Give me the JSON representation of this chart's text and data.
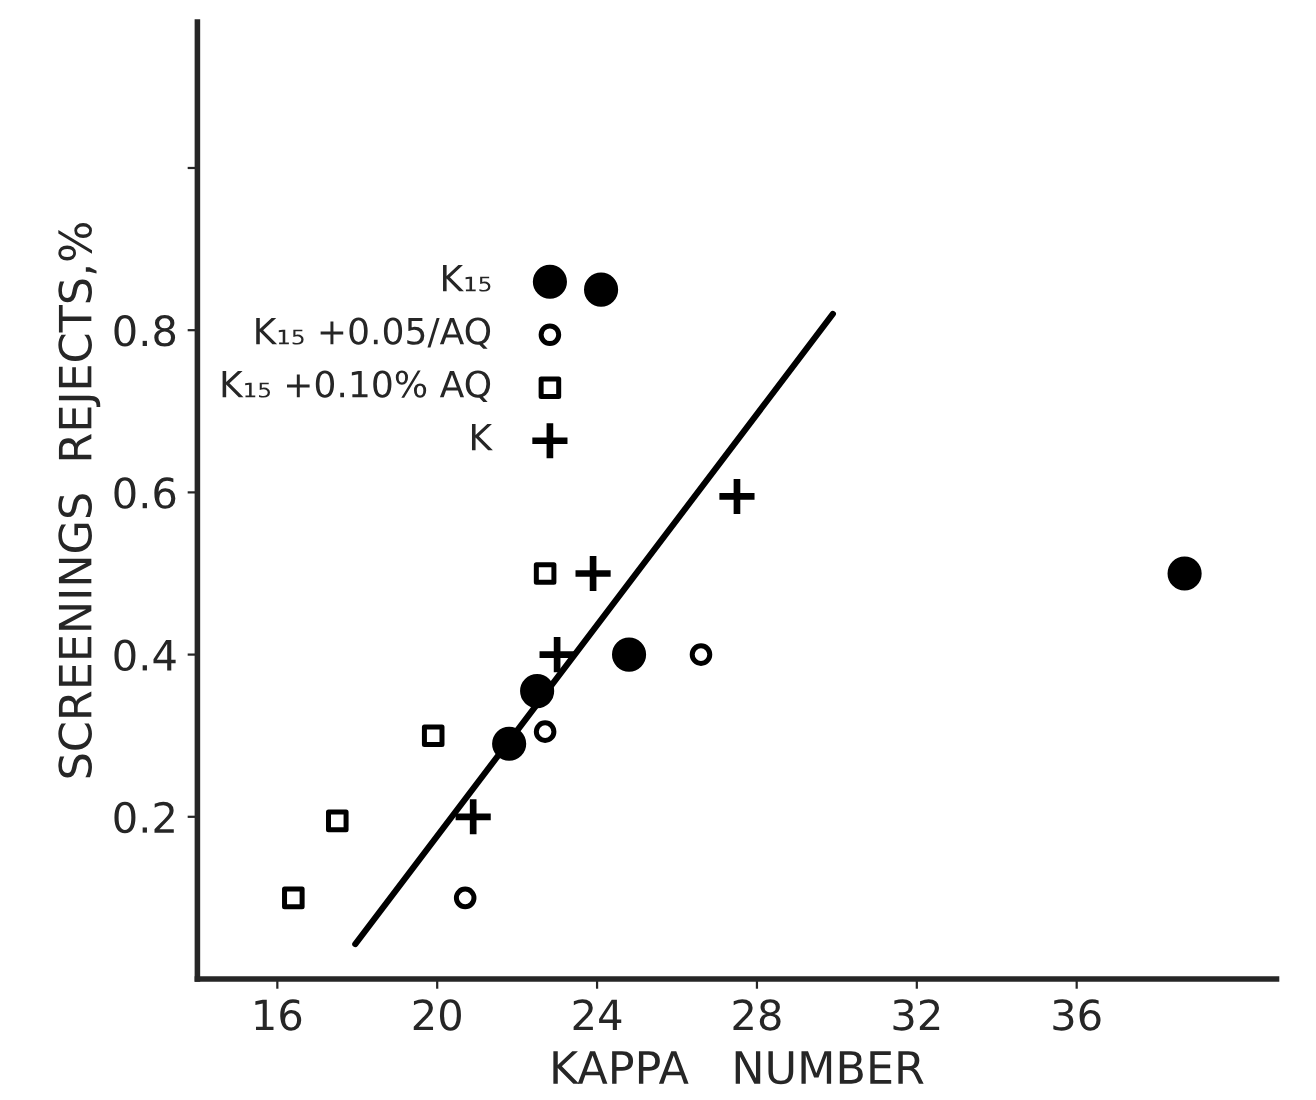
{
  "chart_data": {
    "type": "scatter",
    "xlabel": "KAPPA   NUMBER",
    "ylabel": "SCREENINGS  REJECTS,%",
    "xlim": [
      14,
      41
    ],
    "xticks": [
      16,
      20,
      24,
      28,
      32,
      36
    ],
    "ylim": [
      0,
      1.18
    ],
    "yticks": [
      0.2,
      0.4,
      0.6,
      0.8,
      {
        "value": 1.0,
        "label": null
      }
    ],
    "grid": false,
    "legend": "top left",
    "series": [
      {
        "name": "K₁₅",
        "color": "#000000",
        "marker": "circle",
        "x": [
          24.1,
          38.7,
          24.8,
          22.5,
          21.8
        ],
        "values": [
          0.85,
          0.5,
          0.4,
          0.355,
          0.29
        ]
      },
      {
        "name": "K₁₅ +0.05/AQ",
        "color": "#000000",
        "marker": "circle",
        "x": [
          26.6,
          22.7,
          20.7
        ],
        "values": [
          0.4,
          0.305,
          0.1
        ]
      },
      {
        "name": "K₁₅ +0.10% AQ",
        "color": "#000000",
        "marker": "square",
        "x": [
          22.7,
          19.9,
          17.5,
          16.4
        ],
        "values": [
          0.5,
          0.3,
          0.195,
          0.1
        ]
      },
      {
        "name": "K",
        "color": "#000000",
        "marker": "cross",
        "x": [
          27.5,
          23.9,
          23.0,
          20.9
        ],
        "values": [
          0.595,
          0.5,
          0.4,
          0.2
        ]
      },
      {
        "type": "line",
        "color": "#000000",
        "x": [
          17.95,
          29.9
        ],
        "values": [
          0.043,
          0.82
        ]
      }
    ]
  }
}
